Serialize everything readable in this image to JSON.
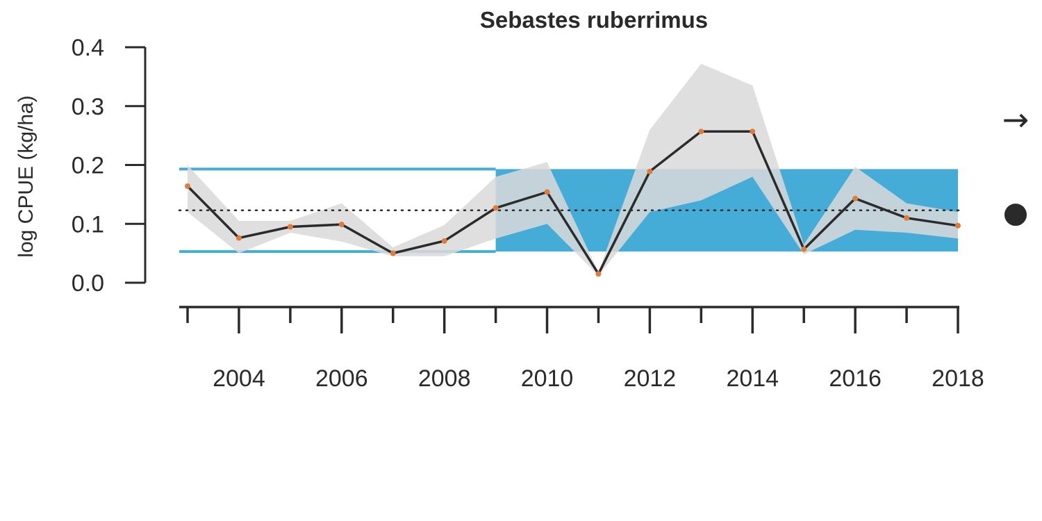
{
  "chart_data": {
    "type": "line",
    "title": "Sebastes ruberrimus",
    "ylabel": "log CPUE (kg/ha)",
    "xlabel": "",
    "ylim": [
      0,
      0.4
    ],
    "xlim": [
      2003,
      2018
    ],
    "y_ticks": [
      {
        "value": 0.0,
        "label": "0.0"
      },
      {
        "value": 0.1,
        "label": "0.1"
      },
      {
        "value": 0.2,
        "label": "0.2"
      },
      {
        "value": 0.3,
        "label": "0.3"
      },
      {
        "value": 0.4,
        "label": "0.4"
      }
    ],
    "x_ticks": [
      2003,
      2004,
      2005,
      2006,
      2007,
      2008,
      2009,
      2010,
      2011,
      2012,
      2013,
      2014,
      2015,
      2016,
      2017,
      2018
    ],
    "x_tick_labels": [
      {
        "value": 2004,
        "label": "2004"
      },
      {
        "value": 2006,
        "label": "2006"
      },
      {
        "value": 2008,
        "label": "2008"
      },
      {
        "value": 2010,
        "label": "2010"
      },
      {
        "value": 2012,
        "label": "2012"
      },
      {
        "value": 2014,
        "label": "2014"
      },
      {
        "value": 2016,
        "label": "2016"
      },
      {
        "value": 2018,
        "label": "2018"
      }
    ],
    "x": [
      2003,
      2004,
      2005,
      2006,
      2007,
      2008,
      2009,
      2010,
      2011,
      2012,
      2013,
      2014,
      2015,
      2016,
      2017,
      2018
    ],
    "series": [
      {
        "values": [
          0.164,
          0.076,
          0.095,
          0.099,
          0.05,
          0.071,
          0.127,
          0.154,
          0.015,
          0.189,
          0.257,
          0.257,
          0.057,
          0.143,
          0.11,
          0.097
        ],
        "lower": [
          0.12,
          0.05,
          0.085,
          0.07,
          0.045,
          0.045,
          0.075,
          0.1,
          0.012,
          0.12,
          0.14,
          0.18,
          0.048,
          0.09,
          0.085,
          0.075
        ],
        "upper": [
          0.2,
          0.105,
          0.105,
          0.135,
          0.06,
          0.098,
          0.18,
          0.205,
          0.018,
          0.26,
          0.372,
          0.335,
          0.065,
          0.197,
          0.135,
          0.12
        ],
        "line_color": "#2b2b2b",
        "point_color": "#e07b39",
        "band_color": "#d9d9d9"
      }
    ],
    "reference_band": {
      "lower": 0.053,
      "upper": 0.193,
      "color": "#44acd6",
      "filled_from": 2009
    },
    "reference_mean": 0.123,
    "indicators": {
      "trend": "→",
      "status": "●"
    },
    "grid": false
  }
}
